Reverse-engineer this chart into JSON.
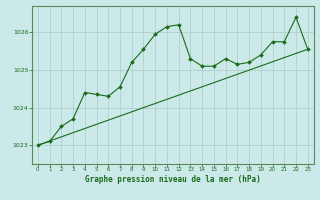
{
  "xlabel": "Graphe pression niveau de la mer (hPa)",
  "bg_color": "#cce9e9",
  "grid_color": "#aacccc",
  "line_color": "#1a6b1a",
  "border_color": "#5a8a5a",
  "x_ticks": [
    0,
    1,
    2,
    3,
    4,
    5,
    6,
    7,
    8,
    9,
    10,
    11,
    12,
    13,
    14,
    15,
    16,
    17,
    18,
    19,
    20,
    21,
    22,
    23
  ],
  "y_ticks": [
    1023,
    1024,
    1025,
    1026
  ],
  "ylim": [
    1022.5,
    1026.7
  ],
  "xlim": [
    -0.5,
    23.5
  ],
  "data_x": [
    0,
    1,
    2,
    3,
    4,
    5,
    6,
    7,
    8,
    9,
    10,
    11,
    12,
    13,
    14,
    15,
    16,
    17,
    18,
    19,
    20,
    21,
    22,
    23
  ],
  "data_y": [
    1023.0,
    1023.1,
    1023.5,
    1023.7,
    1024.4,
    1024.35,
    1024.3,
    1024.55,
    1025.2,
    1025.55,
    1025.95,
    1026.15,
    1026.2,
    1025.3,
    1025.1,
    1025.1,
    1025.3,
    1025.15,
    1025.2,
    1025.4,
    1025.75,
    1025.75,
    1026.4,
    1025.55
  ],
  "trend_x": [
    0,
    23
  ],
  "trend_y": [
    1023.0,
    1025.55
  ]
}
